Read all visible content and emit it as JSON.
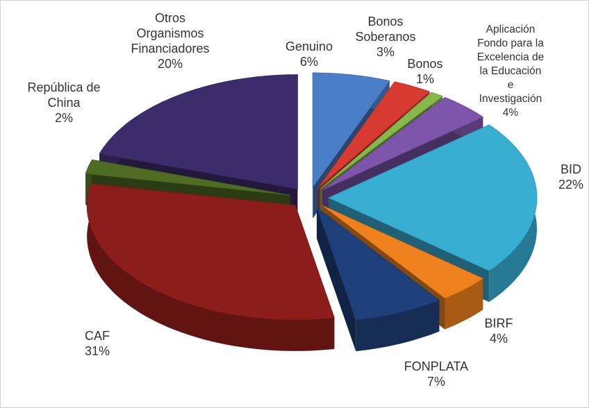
{
  "chart_data": {
    "type": "pie",
    "categories": [
      "Genuino",
      "Bonos\nSoberanos",
      "Bonos",
      "Aplicación\nFondo para la\nExcelencia de\nla Educación\ne\nInvestigación",
      "BID",
      "BIRF",
      "FONPLATA",
      "CAF",
      "República de\nChina",
      "Otros\nOrganismos\nFinanciadores"
    ],
    "values": [
      6,
      3,
      1,
      4,
      22,
      4,
      7,
      31,
      2,
      20
    ],
    "value_labels": [
      "6%",
      "3%",
      "1%",
      "4%",
      "22%",
      "4%",
      "7%",
      "31%",
      "2%",
      "20%"
    ],
    "colors": [
      "#4a7fc8",
      "#d63a30",
      "#86b84a",
      "#7d55aa",
      "#38aed2",
      "#f0821e",
      "#1f3f7a",
      "#8c1d1b",
      "#4e6c22",
      "#3d2c6c"
    ]
  }
}
